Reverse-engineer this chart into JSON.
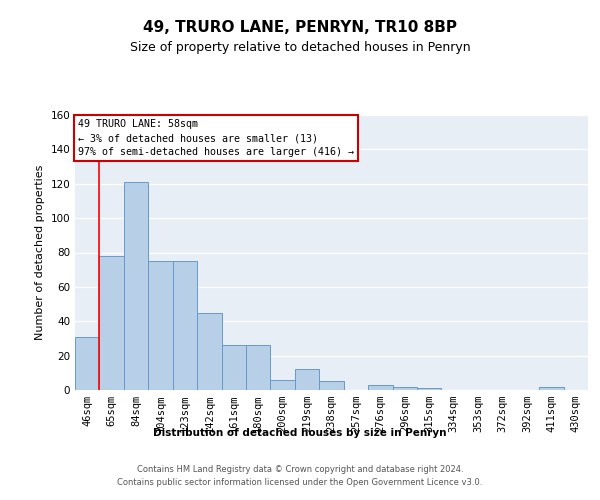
{
  "title": "49, TRURO LANE, PENRYN, TR10 8BP",
  "subtitle": "Size of property relative to detached houses in Penryn",
  "xlabel": "Distribution of detached houses by size in Penryn",
  "ylabel": "Number of detached properties",
  "categories": [
    "46sqm",
    "65sqm",
    "84sqm",
    "104sqm",
    "123sqm",
    "142sqm",
    "161sqm",
    "180sqm",
    "200sqm",
    "219sqm",
    "238sqm",
    "257sqm",
    "276sqm",
    "296sqm",
    "315sqm",
    "334sqm",
    "353sqm",
    "372sqm",
    "392sqm",
    "411sqm",
    "430sqm"
  ],
  "values": [
    31,
    78,
    121,
    75,
    75,
    45,
    26,
    26,
    6,
    12,
    5,
    0,
    3,
    2,
    1,
    0,
    0,
    0,
    0,
    2,
    0
  ],
  "bar_color": "#b8cfe8",
  "bar_edge_color": "#6699cc",
  "ylim": [
    0,
    160
  ],
  "yticks": [
    0,
    20,
    40,
    60,
    80,
    100,
    120,
    140,
    160
  ],
  "annotation_text": "49 TRURO LANE: 58sqm\n← 3% of detached houses are smaller (13)\n97% of semi-detached houses are larger (416) →",
  "annotation_box_color": "#ffffff",
  "annotation_box_edge": "#cc0000",
  "footer": "Contains HM Land Registry data © Crown copyright and database right 2024.\nContains public sector information licensed under the Open Government Licence v3.0.",
  "background_color": "#e8eef5",
  "title_fontsize": 11,
  "subtitle_fontsize": 9
}
